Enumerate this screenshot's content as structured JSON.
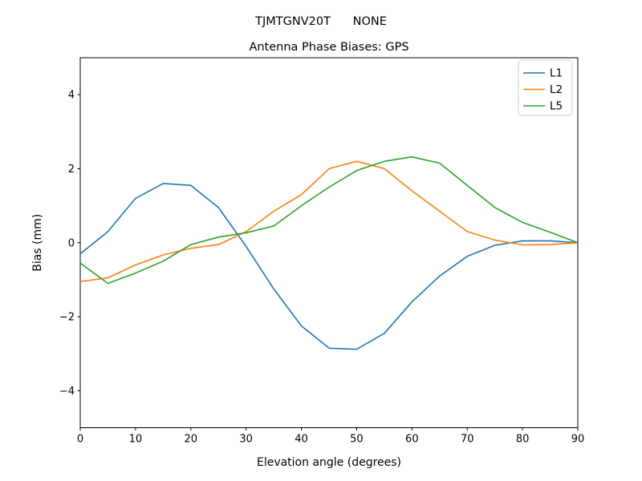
{
  "figure": {
    "suptitle": "TJMTGNV20T      NONE",
    "background_color": "#ffffff"
  },
  "chart_data": {
    "type": "line",
    "title": "Antenna Phase Biases: GPS",
    "xlabel": "Elevation angle (degrees)",
    "ylabel": "Bias (mm)",
    "xlim": [
      0,
      90
    ],
    "ylim": [
      -5,
      5
    ],
    "x_ticks": [
      0,
      10,
      20,
      30,
      40,
      50,
      60,
      70,
      80,
      90
    ],
    "y_ticks": [
      -4,
      -2,
      0,
      2,
      4
    ],
    "grid": false,
    "axis_color": "#000000",
    "legend": {
      "position": "upper right",
      "border_color": "#cccccc",
      "entries": [
        "L1",
        "L2",
        "L5"
      ]
    },
    "x": [
      0,
      5,
      10,
      15,
      20,
      25,
      30,
      35,
      40,
      45,
      50,
      55,
      60,
      65,
      70,
      75,
      80,
      85,
      90
    ],
    "series": [
      {
        "name": "L1",
        "color": "#1f77b4",
        "values": [
          -0.3,
          0.3,
          1.2,
          1.6,
          1.55,
          0.95,
          -0.1,
          -1.25,
          -2.25,
          -2.85,
          -2.88,
          -2.45,
          -1.6,
          -0.9,
          -0.37,
          -0.07,
          0.05,
          0.05,
          0.0
        ]
      },
      {
        "name": "L2",
        "color": "#ff7f0e",
        "values": [
          -1.05,
          -0.95,
          -0.6,
          -0.33,
          -0.15,
          -0.05,
          0.3,
          0.85,
          1.3,
          2.0,
          2.2,
          2.0,
          1.4,
          0.85,
          0.3,
          0.07,
          -0.06,
          -0.05,
          0.0
        ]
      },
      {
        "name": "L5",
        "color": "#2ca02c",
        "values": [
          -0.55,
          -1.1,
          -0.82,
          -0.5,
          -0.05,
          0.15,
          0.27,
          0.45,
          1.0,
          1.5,
          1.95,
          2.2,
          2.32,
          2.15,
          1.55,
          0.95,
          0.55,
          0.28,
          0.0
        ]
      }
    ]
  }
}
